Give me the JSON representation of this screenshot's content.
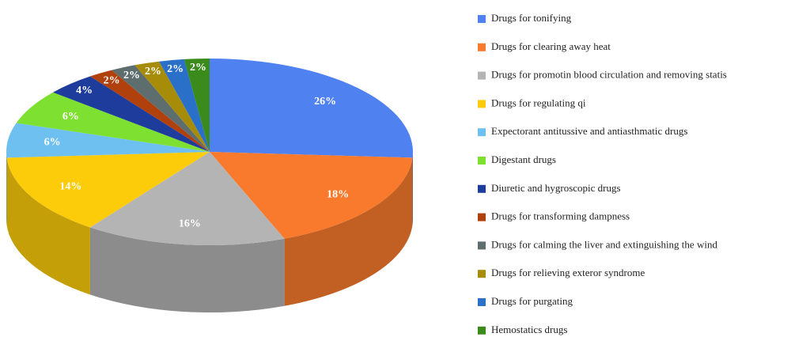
{
  "chart_data": {
    "type": "pie",
    "categories": [
      "Drugs for tonifying",
      "Drugs for clearing away heat",
      "Drugs for promotin blood circulation and removing statis",
      "Drugs for regulating qi",
      "Expectorant antitussive and antiasthmatic drugs",
      "Digestant drugs",
      "Diuretic and hygroscopic drugs",
      "Drugs for transforming dampness",
      "Drugs for calming the liver and extinguishing the wind",
      "Drugs for relieving exteror syndrome",
      "Drugs for purgating",
      "Hemostatics drugs"
    ],
    "values": [
      26,
      18,
      16,
      14,
      6,
      6,
      4,
      2,
      2,
      2,
      2,
      2
    ],
    "value_labels": [
      "26%",
      "18%",
      "16%",
      "14%",
      "6%",
      "6%",
      "4%",
      "2%",
      "2%",
      "2%",
      "2%",
      "2%"
    ],
    "colors": [
      "#4f81f0",
      "#f97a2c",
      "#b4b4b4",
      "#fccc0a",
      "#6ec0f0",
      "#7ee030",
      "#1d3c9c",
      "#b0400c",
      "#5e6e6e",
      "#a68c08",
      "#2a70c8",
      "#3a8a1c"
    ]
  }
}
